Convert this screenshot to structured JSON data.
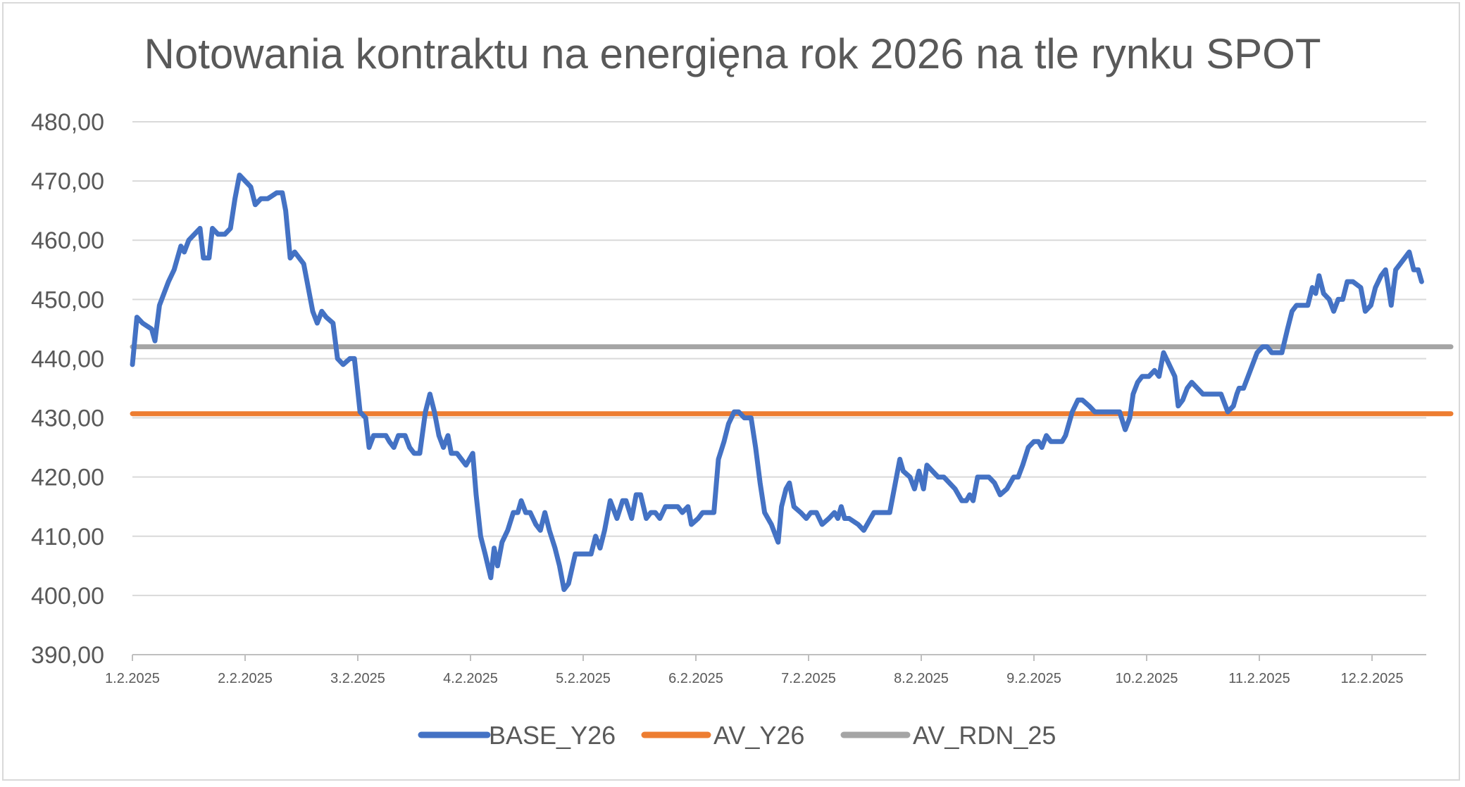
{
  "chart_data": {
    "type": "line",
    "title": "Notowania kontraktu na energięna rok 2026 na tle rynku SPOT",
    "xlabel": "",
    "ylabel": "",
    "ylim": [
      390,
      480
    ],
    "yticks": [
      "390,00",
      "400,00",
      "410,00",
      "420,00",
      "430,00",
      "440,00",
      "450,00",
      "460,00",
      "470,00",
      "480,00"
    ],
    "xtick_labels": [
      "1.2.2025",
      "2.2.2025",
      "3.2.2025",
      "4.2.2025",
      "5.2.2025",
      "6.2.2025",
      "7.2.2025",
      "8.2.2025",
      "9.2.2025",
      "10.2.2025",
      "11.2.2025",
      "12.2.2025"
    ],
    "x_range": [
      0,
      11.7
    ],
    "grid": true,
    "legend_position": "bottom",
    "series": [
      {
        "name": "BASE_Y26",
        "color": "#4472c4",
        "points": [
          [
            0.0,
            439
          ],
          [
            0.04,
            447
          ],
          [
            0.09,
            446
          ],
          [
            0.17,
            445
          ],
          [
            0.2,
            443
          ],
          [
            0.24,
            449
          ],
          [
            0.28,
            451
          ],
          [
            0.32,
            453
          ],
          [
            0.37,
            455
          ],
          [
            0.43,
            459
          ],
          [
            0.46,
            458
          ],
          [
            0.5,
            460
          ],
          [
            0.55,
            461
          ],
          [
            0.6,
            462
          ],
          [
            0.63,
            457
          ],
          [
            0.68,
            457
          ],
          [
            0.71,
            462
          ],
          [
            0.76,
            461
          ],
          [
            0.82,
            461
          ],
          [
            0.87,
            462
          ],
          [
            0.91,
            467
          ],
          [
            0.95,
            471
          ],
          [
            1.0,
            470
          ],
          [
            1.05,
            469
          ],
          [
            1.09,
            466
          ],
          [
            1.14,
            467
          ],
          [
            1.2,
            467
          ],
          [
            1.28,
            468
          ],
          [
            1.33,
            468
          ],
          [
            1.36,
            465
          ],
          [
            1.4,
            457
          ],
          [
            1.44,
            458
          ],
          [
            1.52,
            456
          ],
          [
            1.57,
            451
          ],
          [
            1.6,
            448
          ],
          [
            1.64,
            446
          ],
          [
            1.68,
            448
          ],
          [
            1.72,
            447
          ],
          [
            1.78,
            446
          ],
          [
            1.82,
            440
          ],
          [
            1.87,
            439
          ],
          [
            1.93,
            440
          ],
          [
            1.97,
            440
          ],
          [
            2.02,
            431
          ],
          [
            2.07,
            430
          ],
          [
            2.1,
            425
          ],
          [
            2.14,
            427
          ],
          [
            2.21,
            427
          ],
          [
            2.25,
            427
          ],
          [
            2.28,
            426
          ],
          [
            2.32,
            425
          ],
          [
            2.36,
            427
          ],
          [
            2.42,
            427
          ],
          [
            2.46,
            425
          ],
          [
            2.5,
            424
          ],
          [
            2.55,
            424
          ],
          [
            2.6,
            431
          ],
          [
            2.64,
            434
          ],
          [
            2.68,
            431
          ],
          [
            2.72,
            427
          ],
          [
            2.76,
            425
          ],
          [
            2.8,
            427
          ],
          [
            2.83,
            424
          ],
          [
            2.88,
            424
          ],
          [
            2.92,
            423
          ],
          [
            2.96,
            422
          ],
          [
            3.02,
            424
          ],
          [
            3.05,
            417
          ],
          [
            3.09,
            410
          ],
          [
            3.13,
            407
          ],
          [
            3.18,
            403
          ],
          [
            3.21,
            408
          ],
          [
            3.24,
            405
          ],
          [
            3.28,
            409
          ],
          [
            3.33,
            411
          ],
          [
            3.38,
            414
          ],
          [
            3.42,
            414
          ],
          [
            3.45,
            416
          ],
          [
            3.49,
            414
          ],
          [
            3.53,
            414
          ],
          [
            3.58,
            412
          ],
          [
            3.62,
            411
          ],
          [
            3.66,
            414
          ],
          [
            3.7,
            411
          ],
          [
            3.75,
            408
          ],
          [
            3.79,
            405
          ],
          [
            3.83,
            401
          ],
          [
            3.87,
            402
          ],
          [
            3.93,
            407
          ],
          [
            3.99,
            407
          ],
          [
            4.03,
            407
          ],
          [
            4.07,
            407
          ],
          [
            4.11,
            410
          ],
          [
            4.15,
            408
          ],
          [
            4.19,
            411
          ],
          [
            4.24,
            416
          ],
          [
            4.3,
            413
          ],
          [
            4.35,
            416
          ],
          [
            4.38,
            416
          ],
          [
            4.43,
            413
          ],
          [
            4.47,
            417
          ],
          [
            4.51,
            417
          ],
          [
            4.56,
            413
          ],
          [
            4.6,
            414
          ],
          [
            4.64,
            414
          ],
          [
            4.68,
            413
          ],
          [
            4.73,
            415
          ],
          [
            4.77,
            415
          ],
          [
            4.84,
            415
          ],
          [
            4.88,
            414
          ],
          [
            4.93,
            415
          ],
          [
            4.96,
            412
          ],
          [
            5.02,
            413
          ],
          [
            5.06,
            414
          ],
          [
            5.12,
            414
          ],
          [
            5.16,
            414
          ],
          [
            5.2,
            423
          ],
          [
            5.25,
            426
          ],
          [
            5.29,
            429
          ],
          [
            5.34,
            431
          ],
          [
            5.38,
            431
          ],
          [
            5.43,
            430
          ],
          [
            5.49,
            430
          ],
          [
            5.53,
            425
          ],
          [
            5.57,
            419
          ],
          [
            5.61,
            414
          ],
          [
            5.67,
            412
          ],
          [
            5.73,
            409
          ],
          [
            5.76,
            415
          ],
          [
            5.8,
            418
          ],
          [
            5.83,
            419
          ],
          [
            5.87,
            415
          ],
          [
            5.93,
            414
          ],
          [
            5.98,
            413
          ],
          [
            6.02,
            414
          ],
          [
            6.07,
            414
          ],
          [
            6.12,
            412
          ],
          [
            6.18,
            413
          ],
          [
            6.23,
            414
          ],
          [
            6.26,
            413
          ],
          [
            6.29,
            415
          ],
          [
            6.32,
            413
          ],
          [
            6.36,
            413
          ],
          [
            6.44,
            412
          ],
          [
            6.49,
            411
          ],
          [
            6.55,
            413
          ],
          [
            6.58,
            414
          ],
          [
            6.62,
            414
          ],
          [
            6.66,
            414
          ],
          [
            6.72,
            414
          ],
          [
            6.76,
            418
          ],
          [
            6.81,
            423
          ],
          [
            6.84,
            421
          ],
          [
            6.9,
            420
          ],
          [
            6.94,
            418
          ],
          [
            6.98,
            421
          ],
          [
            7.02,
            418
          ],
          [
            7.05,
            422
          ],
          [
            7.1,
            421
          ],
          [
            7.15,
            420
          ],
          [
            7.2,
            420
          ],
          [
            7.25,
            419
          ],
          [
            7.3,
            418
          ],
          [
            7.36,
            416
          ],
          [
            7.4,
            416
          ],
          [
            7.43,
            417
          ],
          [
            7.46,
            416
          ],
          [
            7.5,
            420
          ],
          [
            7.55,
            420
          ],
          [
            7.6,
            420
          ],
          [
            7.65,
            419
          ],
          [
            7.7,
            417
          ],
          [
            7.76,
            418
          ],
          [
            7.82,
            420
          ],
          [
            7.86,
            420
          ],
          [
            7.9,
            422
          ],
          [
            7.95,
            425
          ],
          [
            8.0,
            426
          ],
          [
            8.04,
            426
          ],
          [
            8.07,
            425
          ],
          [
            8.11,
            427
          ],
          [
            8.15,
            426
          ],
          [
            8.2,
            426
          ],
          [
            8.25,
            426
          ],
          [
            8.28,
            427
          ],
          [
            8.34,
            431
          ],
          [
            8.39,
            433
          ],
          [
            8.43,
            433
          ],
          [
            8.49,
            432
          ],
          [
            8.54,
            431
          ],
          [
            8.58,
            431
          ],
          [
            8.64,
            431
          ],
          [
            8.7,
            431
          ],
          [
            8.76,
            431
          ],
          [
            8.81,
            428
          ],
          [
            8.85,
            430
          ],
          [
            8.88,
            434
          ],
          [
            8.92,
            436
          ],
          [
            8.96,
            437
          ],
          [
            9.02,
            437
          ],
          [
            9.07,
            438
          ],
          [
            9.11,
            437
          ],
          [
            9.15,
            441
          ],
          [
            9.2,
            439
          ],
          [
            9.25,
            437
          ],
          [
            9.28,
            432
          ],
          [
            9.32,
            433
          ],
          [
            9.36,
            435
          ],
          [
            9.4,
            436
          ],
          [
            9.45,
            435
          ],
          [
            9.5,
            434
          ],
          [
            9.55,
            434
          ],
          [
            9.6,
            434
          ],
          [
            9.66,
            434
          ],
          [
            9.72,
            431
          ],
          [
            9.77,
            432
          ],
          [
            9.8,
            434
          ],
          [
            9.82,
            435
          ],
          [
            9.86,
            435
          ],
          [
            9.9,
            437
          ],
          [
            9.94,
            439
          ],
          [
            9.98,
            441
          ],
          [
            10.03,
            442
          ],
          [
            10.07,
            442
          ],
          [
            10.11,
            441
          ],
          [
            10.16,
            441
          ],
          [
            10.2,
            441
          ],
          [
            10.25,
            445
          ],
          [
            10.29,
            448
          ],
          [
            10.33,
            449
          ],
          [
            10.38,
            449
          ],
          [
            10.43,
            449
          ],
          [
            10.47,
            452
          ],
          [
            10.5,
            451
          ],
          [
            10.53,
            454
          ],
          [
            10.57,
            451
          ],
          [
            10.62,
            450
          ],
          [
            10.66,
            448
          ],
          [
            10.7,
            450
          ],
          [
            10.74,
            450
          ],
          [
            10.78,
            453
          ],
          [
            10.83,
            453
          ],
          [
            10.9,
            452
          ],
          [
            10.94,
            448
          ],
          [
            10.99,
            449
          ],
          [
            11.03,
            452
          ],
          [
            11.08,
            454
          ],
          [
            11.12,
            455
          ],
          [
            11.17,
            449
          ],
          [
            11.21,
            455
          ],
          [
            11.25,
            456
          ],
          [
            11.29,
            457
          ],
          [
            11.33,
            458
          ],
          [
            11.37,
            455
          ],
          [
            11.41,
            455
          ],
          [
            11.44,
            453
          ]
        ]
      },
      {
        "name": "AV_Y26",
        "color": "#ed7d31",
        "points": [
          [
            0,
            430.7
          ],
          [
            11.7,
            430.7
          ]
        ]
      },
      {
        "name": "AV_RDN_25",
        "color": "#a5a5a5",
        "points": [
          [
            0,
            442
          ],
          [
            11.7,
            442
          ]
        ]
      }
    ]
  }
}
